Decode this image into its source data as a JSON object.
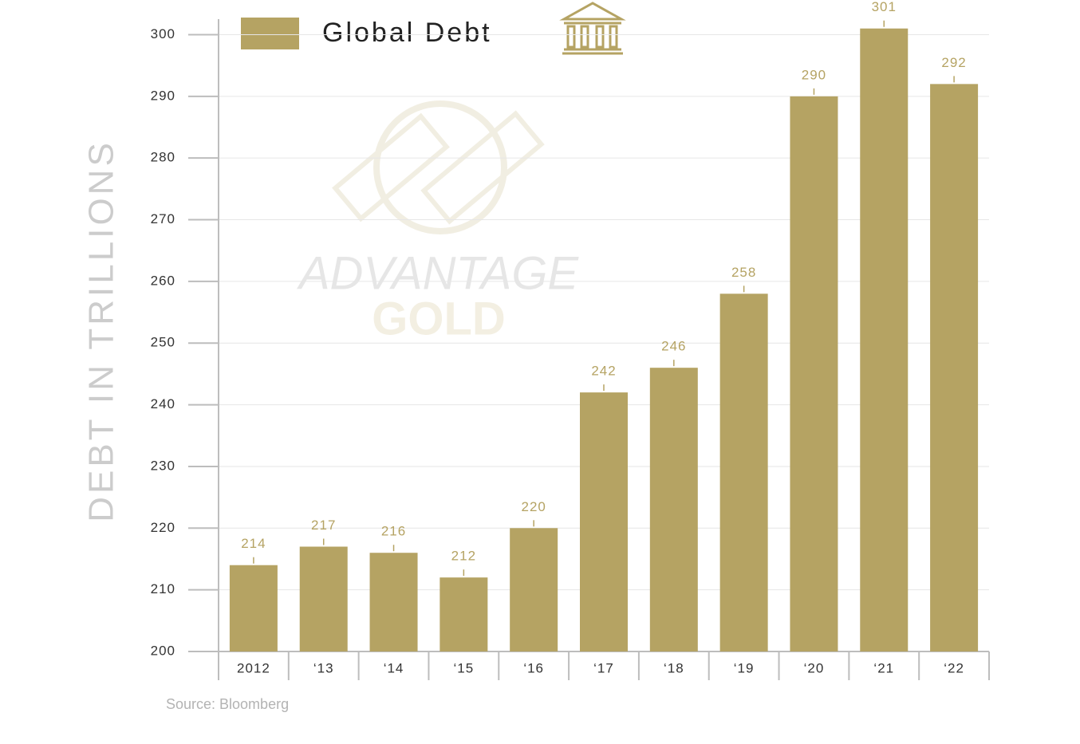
{
  "chart_data": {
    "type": "bar",
    "legend_label": "Global Debt",
    "y_axis_label": "DEBT IN TRILLIONS",
    "source": "Source: Bloomberg",
    "watermark": {
      "line1": "ADVANTAGE",
      "line2": "GOLD"
    },
    "categories": [
      "2012",
      "‘13",
      "‘14",
      "‘15",
      "‘16",
      "‘17",
      "‘18",
      "‘19",
      "‘20",
      "‘21",
      "‘22"
    ],
    "values": [
      214,
      217,
      216,
      212,
      220,
      242,
      246,
      258,
      290,
      301,
      292
    ],
    "color": "#b5a363",
    "ylim": [
      200,
      302
    ],
    "yticks": [
      200,
      210,
      220,
      230,
      240,
      250,
      260,
      270,
      280,
      290,
      300
    ],
    "grid": true
  }
}
